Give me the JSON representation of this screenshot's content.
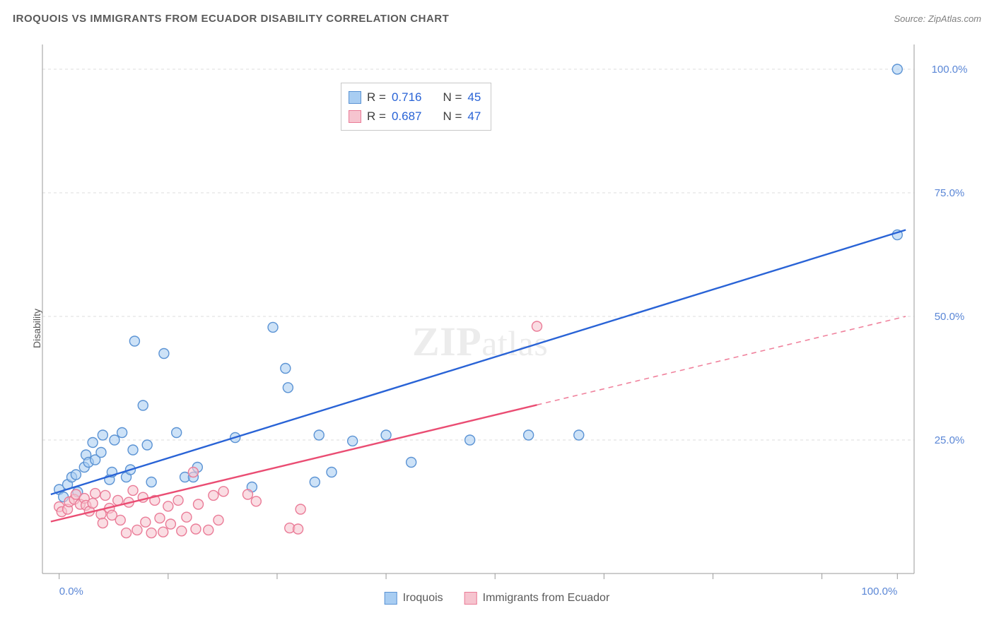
{
  "title": "IROQUOIS VS IMMIGRANTS FROM ECUADOR DISABILITY CORRELATION CHART",
  "source_label": "Source: ZipAtlas.com",
  "watermark_a": "ZIP",
  "watermark_b": "atlas",
  "y_axis_label": "Disability",
  "chart": {
    "type": "scatter",
    "xlim": [
      -2,
      102
    ],
    "x_ticks": [
      0,
      100
    ],
    "x_minor_ticks": [
      13,
      26,
      39,
      52,
      65,
      78,
      91
    ],
    "x_tick_labels": [
      "0.0%",
      "100.0%"
    ],
    "ylim": [
      -2,
      105
    ],
    "y_ticks": [
      25,
      50,
      75,
      100
    ],
    "y_tick_labels": [
      "25.0%",
      "50.0%",
      "75.0%",
      "100.0%"
    ],
    "grid_color": "#dcdcdc",
    "axis_color": "#9a9a9a",
    "background_color": "#ffffff",
    "tick_label_color": "#5b87d6",
    "tick_label_fontsize": 15,
    "point_radius": 7,
    "point_opacity": 0.58,
    "series": [
      {
        "name": "Iroquois",
        "fill": "#a8cdf2",
        "stroke": "#5b93d4",
        "line_color": "#2963d6",
        "points": [
          [
            0,
            15
          ],
          [
            0.5,
            13.5
          ],
          [
            1,
            16
          ],
          [
            1.5,
            17.5
          ],
          [
            2,
            18
          ],
          [
            2.2,
            14.5
          ],
          [
            3,
            19.5
          ],
          [
            3.2,
            22
          ],
          [
            3.5,
            20.5
          ],
          [
            4,
            24.5
          ],
          [
            4.3,
            21
          ],
          [
            5,
            22.5
          ],
          [
            5.2,
            26
          ],
          [
            6,
            17
          ],
          [
            6.3,
            18.5
          ],
          [
            6.6,
            25
          ],
          [
            7.5,
            26.5
          ],
          [
            8,
            17.5
          ],
          [
            8.5,
            19
          ],
          [
            8.8,
            23
          ],
          [
            9,
            45
          ],
          [
            10,
            32
          ],
          [
            10.5,
            24
          ],
          [
            11,
            16.5
          ],
          [
            12.5,
            42.5
          ],
          [
            14,
            26.5
          ],
          [
            15,
            17.5
          ],
          [
            16,
            17.5
          ],
          [
            16.5,
            19.5
          ],
          [
            21,
            25.5
          ],
          [
            23,
            15.5
          ],
          [
            25.5,
            47.8
          ],
          [
            27,
            39.5
          ],
          [
            27.3,
            35.6
          ],
          [
            30.5,
            16.5
          ],
          [
            31,
            26
          ],
          [
            32.5,
            18.5
          ],
          [
            35,
            24.8
          ],
          [
            39,
            26
          ],
          [
            42,
            20.5
          ],
          [
            49,
            25
          ],
          [
            56,
            26
          ],
          [
            62,
            26
          ],
          [
            100,
            100
          ],
          [
            100,
            66.5
          ]
        ],
        "trend": {
          "x1": -1,
          "y1": 14,
          "x2": 101,
          "y2": 67.5,
          "solid_to_x": 101
        }
      },
      {
        "name": "Immigrants from Ecuador",
        "fill": "#f6c4cf",
        "stroke": "#ea7b97",
        "line_color": "#ea4d73",
        "points": [
          [
            0,
            11.5
          ],
          [
            0.3,
            10.5
          ],
          [
            1,
            11
          ],
          [
            1.2,
            12.5
          ],
          [
            1.8,
            13
          ],
          [
            2,
            14
          ],
          [
            2.5,
            12
          ],
          [
            3,
            13.2
          ],
          [
            3.2,
            11.8
          ],
          [
            3.6,
            10.6
          ],
          [
            4,
            12.2
          ],
          [
            4.3,
            14.2
          ],
          [
            5,
            10
          ],
          [
            5.2,
            8.2
          ],
          [
            5.5,
            13.8
          ],
          [
            6,
            11.2
          ],
          [
            6.3,
            9.8
          ],
          [
            7,
            12.8
          ],
          [
            7.3,
            8.8
          ],
          [
            8,
            6.2
          ],
          [
            8.3,
            12.4
          ],
          [
            8.8,
            14.8
          ],
          [
            9.3,
            6.8
          ],
          [
            10,
            13.4
          ],
          [
            10.3,
            8.4
          ],
          [
            11,
            6.2
          ],
          [
            11.4,
            12.8
          ],
          [
            12,
            9.2
          ],
          [
            12.4,
            6.4
          ],
          [
            13,
            11.6
          ],
          [
            13.3,
            8
          ],
          [
            14.2,
            12.8
          ],
          [
            14.6,
            6.6
          ],
          [
            15.2,
            9.4
          ],
          [
            16,
            18.5
          ],
          [
            16.3,
            7
          ],
          [
            16.6,
            12
          ],
          [
            17.8,
            6.8
          ],
          [
            18.4,
            13.8
          ],
          [
            19,
            8.8
          ],
          [
            19.6,
            14.6
          ],
          [
            22.5,
            14
          ],
          [
            23.5,
            12.6
          ],
          [
            27.5,
            7.2
          ],
          [
            28.5,
            7
          ],
          [
            28.8,
            11
          ],
          [
            57,
            48
          ]
        ],
        "trend": {
          "x1": -1,
          "y1": 8.5,
          "x2": 101,
          "y2": 50,
          "solid_to_x": 57
        }
      }
    ]
  },
  "stats": [
    {
      "swatch_fill": "#a8cdf2",
      "swatch_stroke": "#5b93d4",
      "r": "0.716",
      "n": "45"
    },
    {
      "swatch_fill": "#f6c4cf",
      "swatch_stroke": "#ea7b97",
      "r": "0.687",
      "n": "47"
    }
  ],
  "bottom_legend": [
    {
      "label": "Iroquois",
      "fill": "#a8cdf2",
      "stroke": "#5b93d4"
    },
    {
      "label": "Immigrants from Ecuador",
      "fill": "#f6c4cf",
      "stroke": "#ea7b97"
    }
  ],
  "labels": {
    "R": "R",
    "N": "N",
    "eq": "="
  }
}
